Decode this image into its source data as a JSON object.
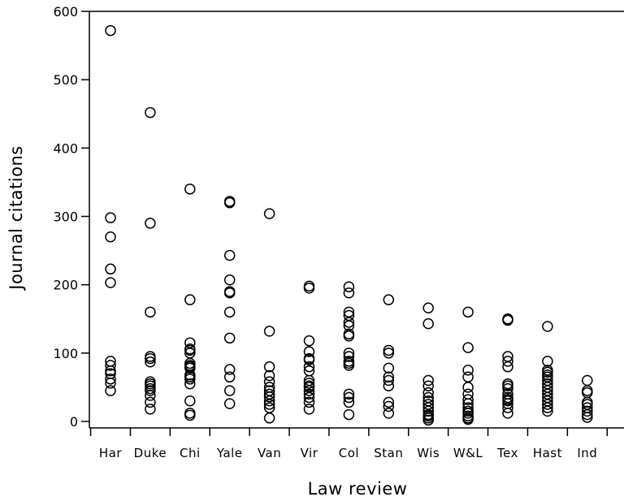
{
  "chart_data": {
    "type": "scatter",
    "title": "",
    "xlabel": "Law review",
    "ylabel": "Journal citations",
    "ylim": [
      0,
      600
    ],
    "yticks": [
      0,
      100,
      200,
      300,
      400,
      500,
      600
    ],
    "grid": false,
    "legend": "none",
    "marker": "open-circle",
    "categories": [
      "Har",
      "Duke",
      "Chi",
      "Yale",
      "Van",
      "Vir",
      "Col",
      "Stan",
      "Wis",
      "W&L",
      "Tex",
      "Hast",
      "Ind"
    ],
    "points": {
      "Har": [
        572,
        298,
        270,
        223,
        203,
        88,
        82,
        74,
        70,
        62,
        56,
        45
      ],
      "Duke": [
        452,
        290,
        160,
        95,
        92,
        87,
        58,
        55,
        52,
        48,
        45,
        38,
        28,
        18
      ],
      "Chi": [
        340,
        178,
        115,
        106,
        104,
        100,
        85,
        82,
        80,
        78,
        68,
        65,
        62,
        55,
        30,
        12,
        9
      ],
      "Yale": [
        322,
        320,
        243,
        207,
        190,
        188,
        160,
        122,
        76,
        65,
        45,
        26
      ],
      "Van": [
        304,
        132,
        80,
        67,
        58,
        50,
        45,
        40,
        36,
        30,
        25,
        20,
        5
      ],
      "Vir": [
        198,
        195,
        118,
        102,
        92,
        90,
        80,
        74,
        60,
        56,
        52,
        50,
        45,
        40,
        35,
        28,
        18
      ],
      "Col": [
        197,
        188,
        160,
        155,
        145,
        140,
        128,
        125,
        100,
        95,
        88,
        85,
        82,
        40,
        35,
        28,
        10
      ],
      "Stan": [
        178,
        104,
        100,
        78,
        65,
        60,
        52,
        28,
        22,
        12
      ],
      "Wis": [
        166,
        143,
        60,
        52,
        42,
        35,
        30,
        25,
        20,
        15,
        10,
        8,
        5,
        2
      ],
      "W&L": [
        160,
        108,
        75,
        65,
        50,
        40,
        32,
        26,
        20,
        15,
        12,
        8,
        5,
        3
      ],
      "Tex": [
        150,
        148,
        95,
        88,
        80,
        55,
        52,
        48,
        40,
        35,
        32,
        30,
        26,
        20,
        12
      ],
      "Hast": [
        139,
        88,
        75,
        72,
        68,
        65,
        60,
        55,
        50,
        45,
        40,
        35,
        30,
        25,
        20,
        15
      ],
      "Ind": [
        60,
        45,
        42,
        28,
        25,
        20,
        15,
        10,
        6
      ]
    }
  }
}
